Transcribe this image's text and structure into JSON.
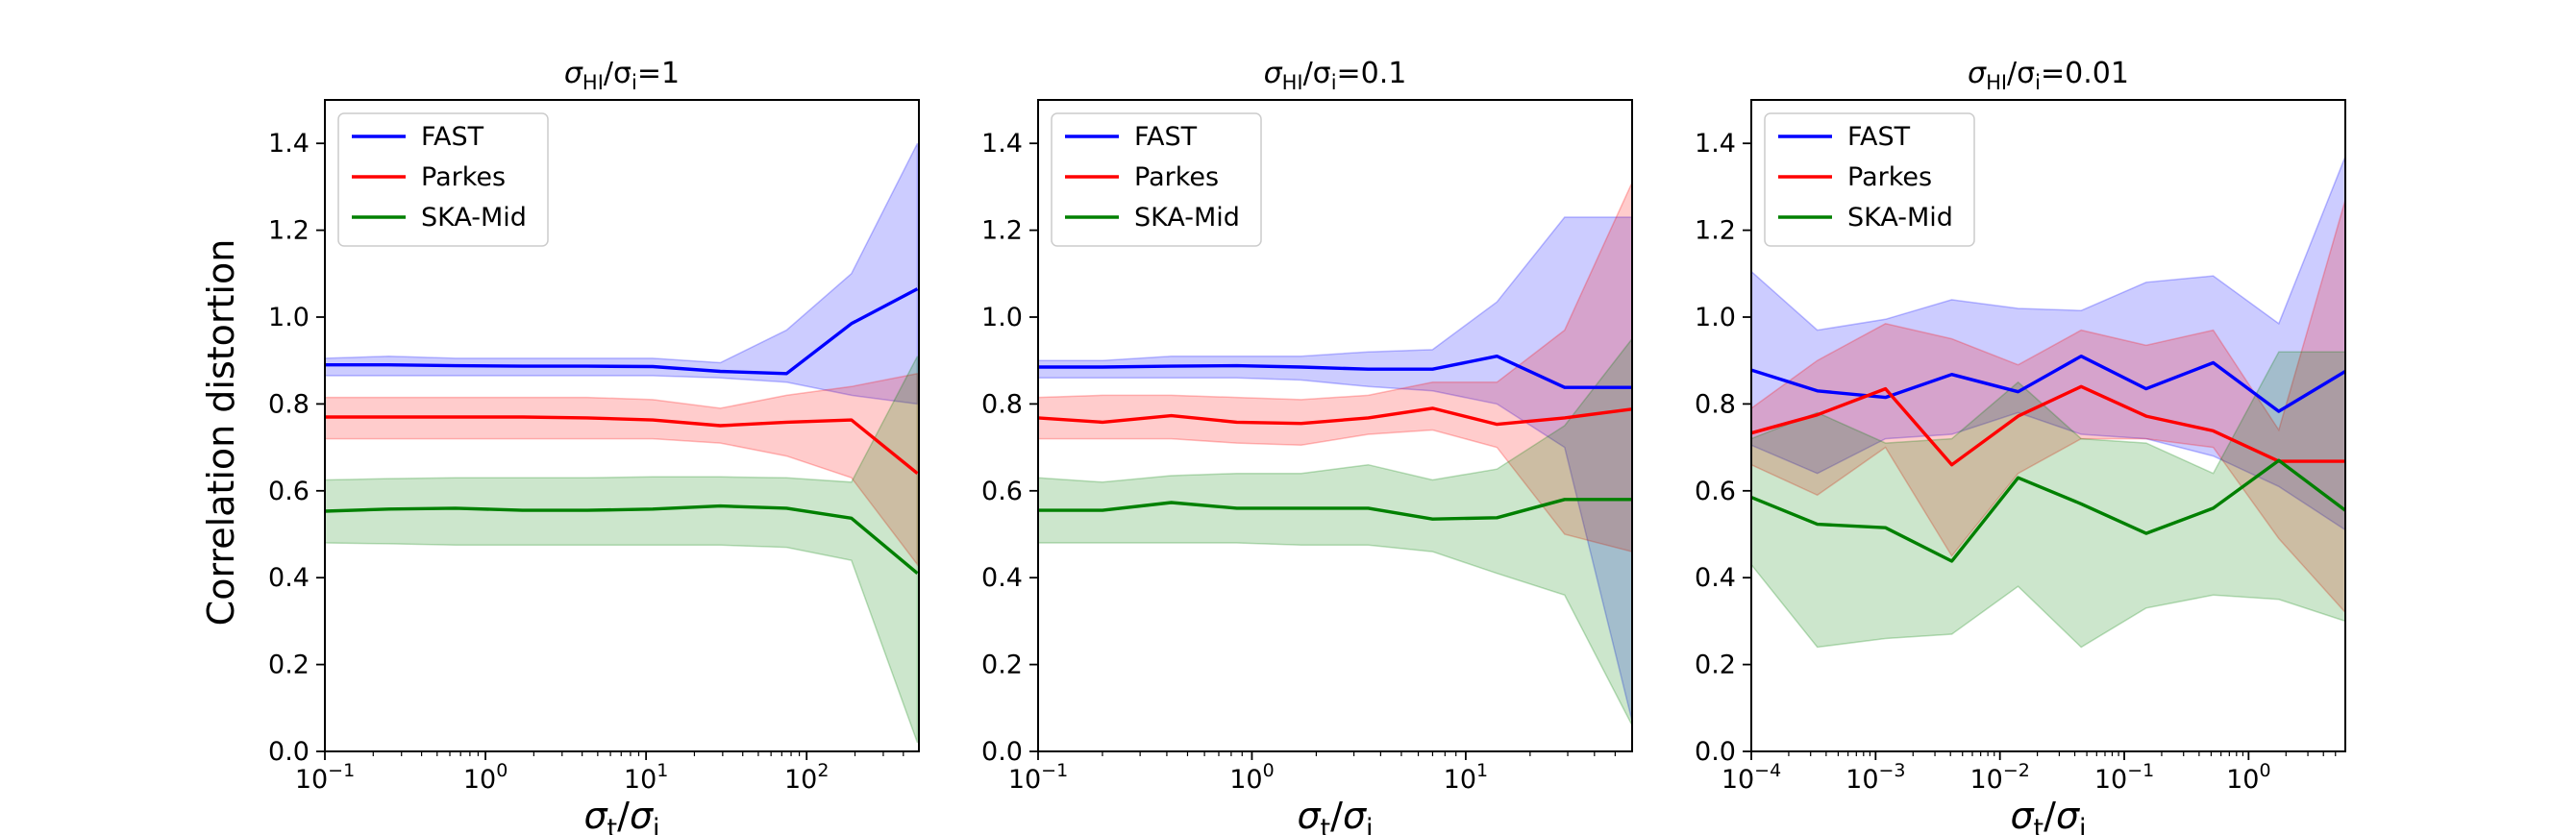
{
  "figure": {
    "ylabel": "Correlation distortion",
    "xlabel_base": "σ",
    "xlabel_num_sub": "t",
    "xlabel_den_sub": "i"
  },
  "colors": {
    "FAST": "#0000ff",
    "Parkes": "#ff0000",
    "SKA-Mid": "#008000"
  },
  "legend": {
    "placement": "upper-left",
    "entries": [
      "FAST",
      "Parkes",
      "SKA-Mid"
    ]
  },
  "chart_data": [
    {
      "type": "line",
      "title": {
        "base": "σ",
        "sub1": "HI",
        "sep": "/σ",
        "sub2": "i",
        "value": "=1"
      },
      "xscale": "log",
      "xlim": [
        0.1,
        500
      ],
      "ylim": [
        0.0,
        1.5
      ],
      "xticks": [
        {
          "value": 0.1,
          "base": "10",
          "exp": "−1"
        },
        {
          "value": 1,
          "base": "10",
          "exp": "0"
        },
        {
          "value": 10,
          "base": "10",
          "exp": "1"
        },
        {
          "value": 100,
          "base": "10",
          "exp": "2"
        }
      ],
      "yticks": [
        "0.0",
        "0.2",
        "0.4",
        "0.6",
        "0.8",
        "1.0",
        "1.2",
        "1.4"
      ],
      "x": [
        0.1,
        0.25,
        0.65,
        1.7,
        4.3,
        11,
        29,
        75,
        190,
        490
      ],
      "series": [
        {
          "name": "FAST",
          "values": [
            0.89,
            0.89,
            0.888,
            0.887,
            0.887,
            0.886,
            0.875,
            0.87,
            0.985,
            1.065
          ],
          "lower": [
            0.865,
            0.865,
            0.865,
            0.865,
            0.865,
            0.865,
            0.86,
            0.85,
            0.82,
            0.8
          ],
          "upper": [
            0.905,
            0.91,
            0.905,
            0.905,
            0.905,
            0.905,
            0.895,
            0.97,
            1.1,
            1.4
          ]
        },
        {
          "name": "Parkes",
          "values": [
            0.77,
            0.77,
            0.77,
            0.77,
            0.768,
            0.763,
            0.75,
            0.758,
            0.763,
            0.64
          ],
          "lower": [
            0.72,
            0.72,
            0.72,
            0.72,
            0.72,
            0.72,
            0.71,
            0.68,
            0.63,
            0.43
          ],
          "upper": [
            0.815,
            0.815,
            0.815,
            0.815,
            0.815,
            0.81,
            0.79,
            0.82,
            0.84,
            0.87
          ]
        },
        {
          "name": "SKA-Mid",
          "values": [
            0.553,
            0.558,
            0.56,
            0.555,
            0.555,
            0.558,
            0.565,
            0.56,
            0.537,
            0.41
          ],
          "lower": [
            0.48,
            0.478,
            0.475,
            0.475,
            0.475,
            0.475,
            0.475,
            0.47,
            0.44,
            0.02
          ],
          "upper": [
            0.625,
            0.628,
            0.63,
            0.63,
            0.63,
            0.632,
            0.632,
            0.63,
            0.62,
            0.91
          ]
        }
      ]
    },
    {
      "type": "line",
      "title": {
        "base": "σ",
        "sub1": "HI",
        "sep": "/σ",
        "sub2": "i",
        "value": "=0.1"
      },
      "xscale": "log",
      "xlim": [
        0.1,
        60
      ],
      "ylim": [
        0.0,
        1.5
      ],
      "xticks": [
        {
          "value": 0.1,
          "base": "10",
          "exp": "−1"
        },
        {
          "value": 1,
          "base": "10",
          "exp": "0"
        },
        {
          "value": 10,
          "base": "10",
          "exp": "1"
        }
      ],
      "yticks": [
        "0.0",
        "0.2",
        "0.4",
        "0.6",
        "0.8",
        "1.0",
        "1.2",
        "1.4"
      ],
      "x": [
        0.1,
        0.2,
        0.42,
        0.85,
        1.7,
        3.5,
        7,
        14,
        29,
        60
      ],
      "series": [
        {
          "name": "FAST",
          "values": [
            0.885,
            0.885,
            0.887,
            0.888,
            0.885,
            0.88,
            0.88,
            0.91,
            0.838,
            0.838
          ],
          "lower": [
            0.86,
            0.86,
            0.86,
            0.86,
            0.855,
            0.84,
            0.83,
            0.8,
            0.7,
            0.07
          ],
          "upper": [
            0.9,
            0.9,
            0.91,
            0.91,
            0.91,
            0.92,
            0.925,
            1.035,
            1.23,
            1.23
          ]
        },
        {
          "name": "Parkes",
          "values": [
            0.768,
            0.758,
            0.773,
            0.758,
            0.755,
            0.768,
            0.79,
            0.753,
            0.768,
            0.788
          ],
          "lower": [
            0.72,
            0.72,
            0.72,
            0.71,
            0.705,
            0.73,
            0.74,
            0.7,
            0.5,
            0.46
          ],
          "upper": [
            0.815,
            0.82,
            0.82,
            0.815,
            0.81,
            0.82,
            0.85,
            0.85,
            0.97,
            1.31
          ]
        },
        {
          "name": "SKA-Mid",
          "values": [
            0.555,
            0.555,
            0.573,
            0.56,
            0.56,
            0.56,
            0.535,
            0.538,
            0.58,
            0.58
          ],
          "lower": [
            0.48,
            0.48,
            0.48,
            0.48,
            0.475,
            0.475,
            0.46,
            0.41,
            0.36,
            0.06
          ],
          "upper": [
            0.63,
            0.62,
            0.635,
            0.64,
            0.64,
            0.66,
            0.625,
            0.65,
            0.75,
            0.95
          ]
        }
      ]
    },
    {
      "type": "line",
      "title": {
        "base": "σ",
        "sub1": "HI",
        "sep": "/σ",
        "sub2": "i",
        "value": "=0.01"
      },
      "xscale": "log",
      "xlim": [
        0.0001,
        6
      ],
      "ylim": [
        0.0,
        1.5
      ],
      "xticks": [
        {
          "value": 0.0001,
          "base": "10",
          "exp": "−4"
        },
        {
          "value": 0.001,
          "base": "10",
          "exp": "−3"
        },
        {
          "value": 0.01,
          "base": "10",
          "exp": "−2"
        },
        {
          "value": 0.1,
          "base": "10",
          "exp": "−1"
        },
        {
          "value": 1,
          "base": "10",
          "exp": "0"
        }
      ],
      "yticks": [
        "0.0",
        "0.2",
        "0.4",
        "0.6",
        "0.8",
        "1.0",
        "1.2",
        "1.4"
      ],
      "x": [
        0.0001,
        0.00034,
        0.0012,
        0.0041,
        0.014,
        0.045,
        0.15,
        0.52,
        1.75,
        6
      ],
      "series": [
        {
          "name": "FAST",
          "values": [
            0.878,
            0.83,
            0.815,
            0.868,
            0.828,
            0.91,
            0.835,
            0.895,
            0.783,
            0.875
          ],
          "lower": [
            0.705,
            0.64,
            0.72,
            0.73,
            0.78,
            0.73,
            0.72,
            0.68,
            0.61,
            0.51
          ],
          "upper": [
            1.105,
            0.97,
            0.995,
            1.04,
            1.02,
            1.015,
            1.08,
            1.095,
            0.985,
            1.37
          ]
        },
        {
          "name": "Parkes",
          "values": [
            0.733,
            0.775,
            0.835,
            0.66,
            0.772,
            0.84,
            0.772,
            0.738,
            0.668,
            0.668
          ],
          "lower": [
            0.66,
            0.59,
            0.7,
            0.45,
            0.64,
            0.72,
            0.72,
            0.7,
            0.49,
            0.32
          ],
          "upper": [
            0.79,
            0.9,
            0.985,
            0.95,
            0.89,
            0.97,
            0.935,
            0.97,
            0.74,
            1.27
          ]
        },
        {
          "name": "SKA-Mid",
          "values": [
            0.585,
            0.523,
            0.515,
            0.438,
            0.63,
            0.57,
            0.502,
            0.56,
            0.67,
            0.555
          ],
          "lower": [
            0.43,
            0.24,
            0.26,
            0.27,
            0.38,
            0.24,
            0.33,
            0.36,
            0.35,
            0.3
          ],
          "upper": [
            0.72,
            0.78,
            0.71,
            0.72,
            0.85,
            0.72,
            0.71,
            0.64,
            0.92,
            0.92
          ]
        }
      ]
    }
  ]
}
